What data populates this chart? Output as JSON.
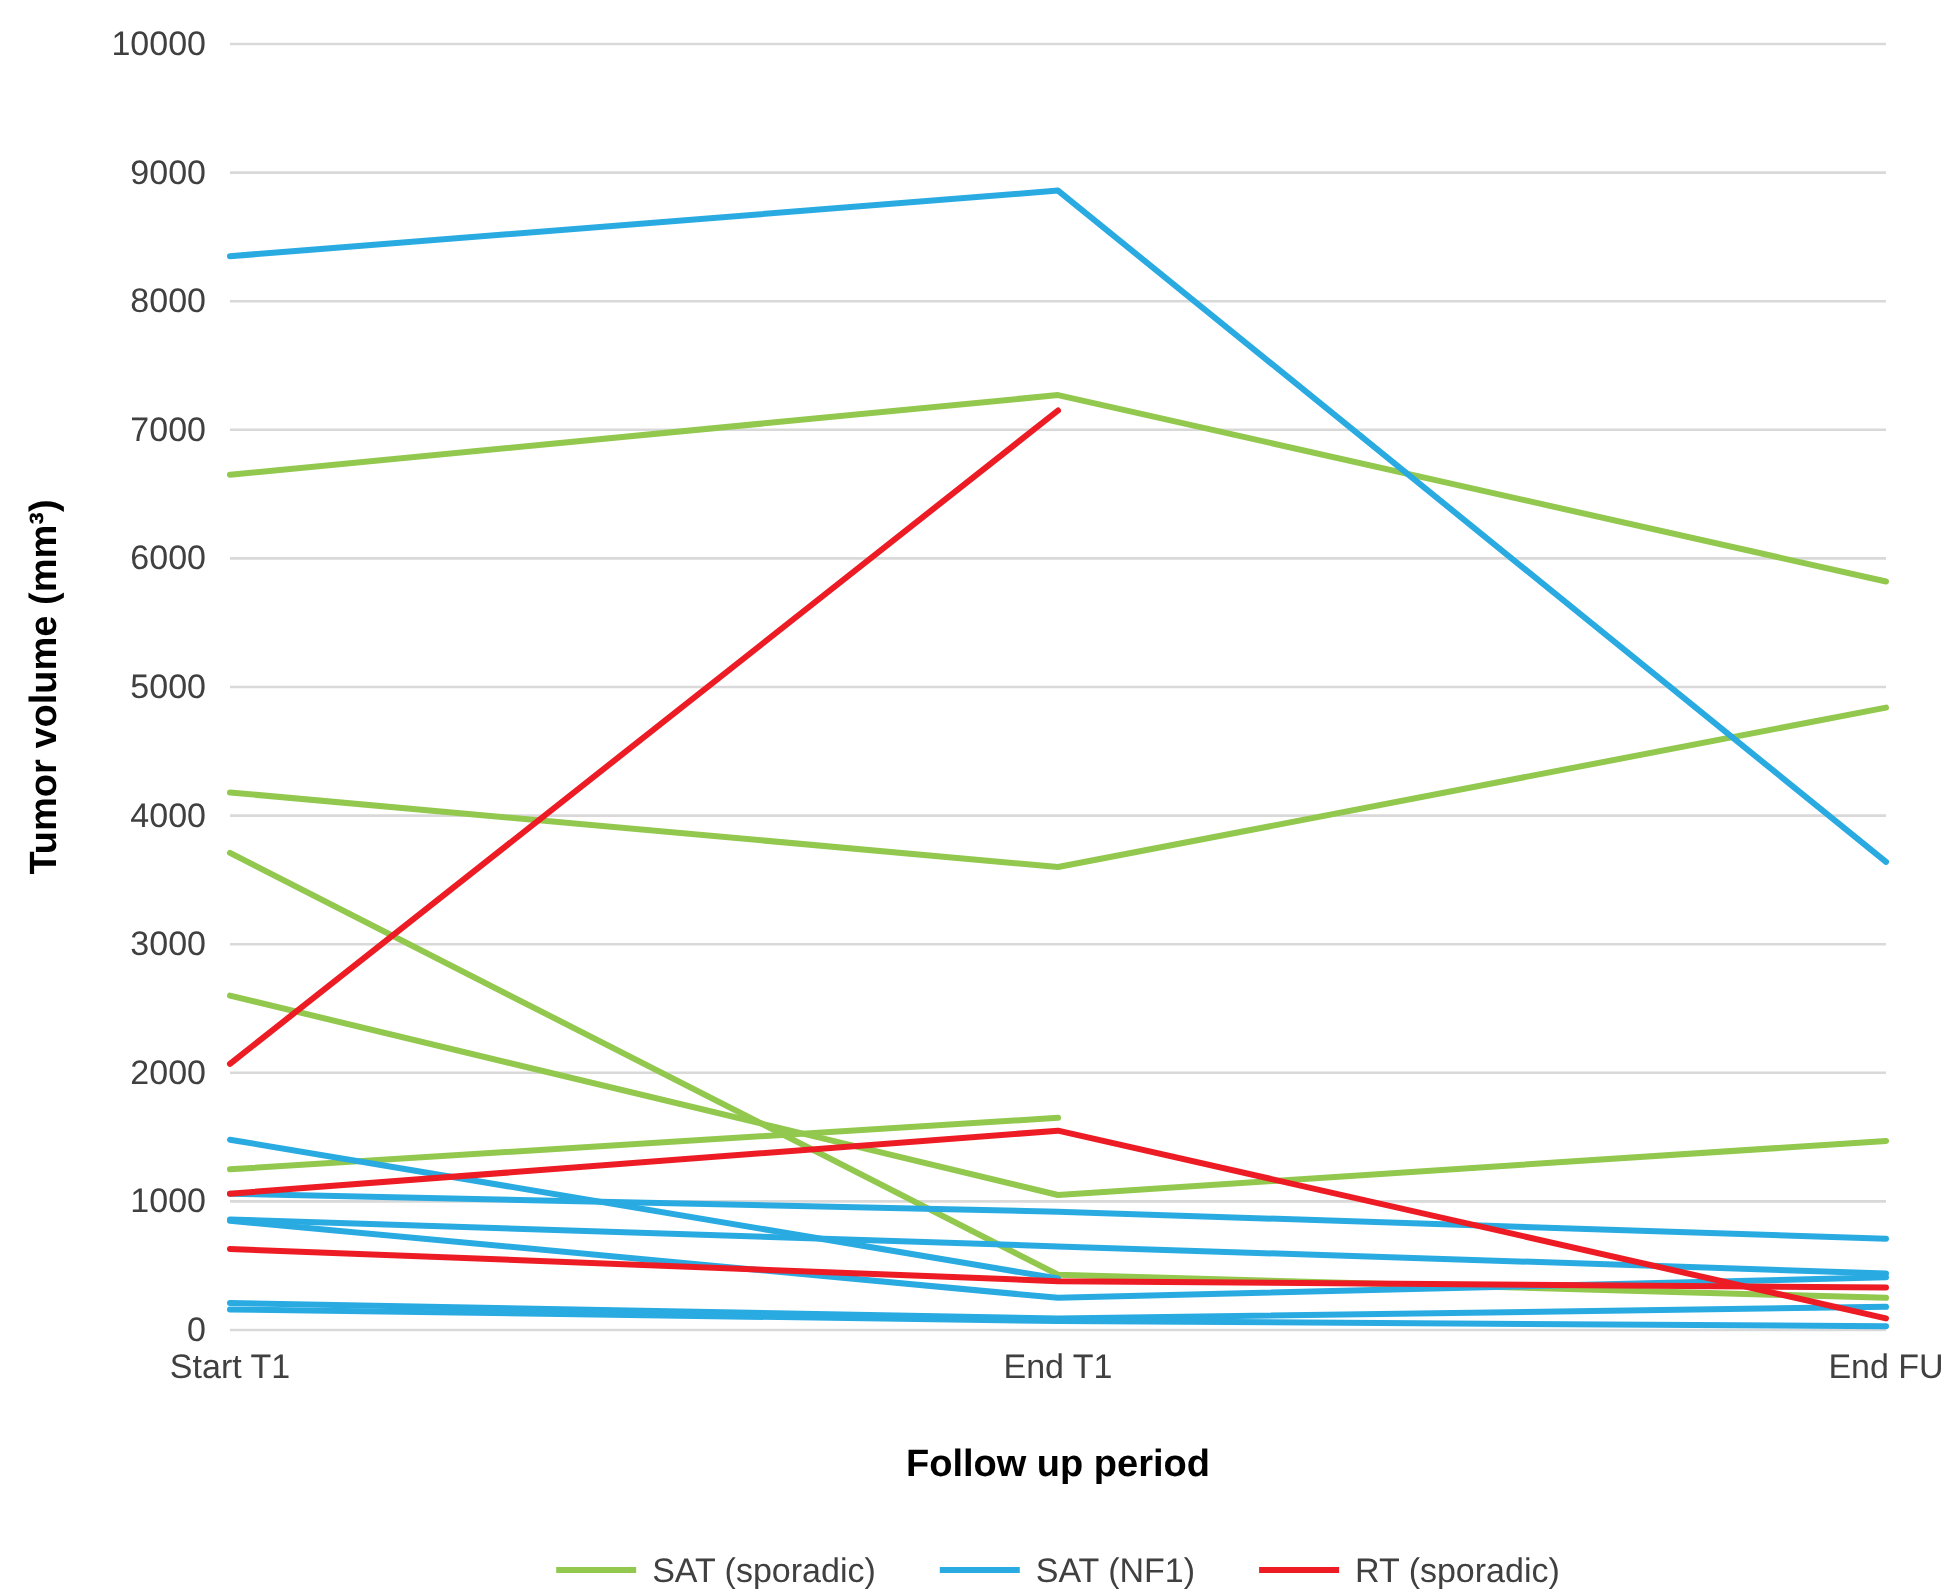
{
  "chart_data": {
    "type": "line",
    "xlabel": "Follow up period",
    "ylabel": "Tumor volume (mm³)",
    "categories": [
      "Start T1",
      "End T1",
      "End FU"
    ],
    "ylim": [
      0,
      10000
    ],
    "yticks": [
      0,
      1000,
      2000,
      3000,
      4000,
      5000,
      6000,
      7000,
      8000,
      9000,
      10000
    ],
    "grid": "y",
    "legend": "bottom",
    "marker": "none",
    "line_style": "solid",
    "series": [
      {
        "name": "SAT (sporadic)",
        "color": "#92c84e",
        "values": [
          6650,
          7270,
          5820
        ]
      },
      {
        "color": "#92c84e",
        "values": [
          4180,
          3600,
          4840
        ]
      },
      {
        "color": "#92c84e",
        "values": [
          3710,
          430,
          250
        ]
      },
      {
        "color": "#92c84e",
        "values": [
          2600,
          1050,
          1470
        ]
      },
      {
        "color": "#92c84e",
        "values": [
          1250,
          1650,
          null
        ]
      },
      {
        "name": "SAT (NF1)",
        "color": "#29abe2",
        "values": [
          8350,
          8860,
          3640
        ]
      },
      {
        "color": "#29abe2",
        "values": [
          1480,
          400,
          null
        ]
      },
      {
        "color": "#29abe2",
        "values": [
          1060,
          920,
          710
        ]
      },
      {
        "color": "#29abe2",
        "values": [
          860,
          650,
          440
        ]
      },
      {
        "color": "#29abe2",
        "values": [
          850,
          250,
          410
        ]
      },
      {
        "color": "#29abe2",
        "values": [
          210,
          90,
          180
        ]
      },
      {
        "color": "#29abe2",
        "values": [
          160,
          70,
          30
        ]
      },
      {
        "name": "RT (sporadic)",
        "color": "#ed1c24",
        "values": [
          2070,
          7150,
          null
        ]
      },
      {
        "color": "#ed1c24",
        "values": [
          1060,
          1550,
          90
        ]
      },
      {
        "color": "#ed1c24",
        "values": [
          630,
          380,
          330
        ]
      }
    ]
  }
}
